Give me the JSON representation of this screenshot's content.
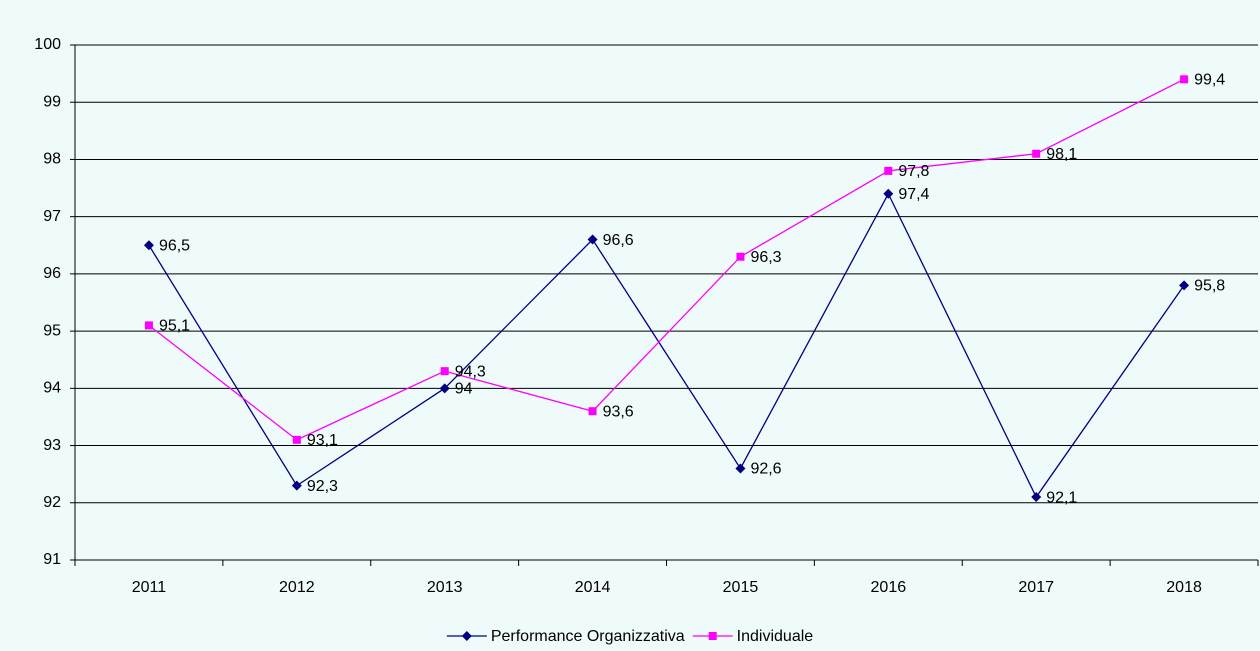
{
  "chart_data": {
    "type": "line",
    "categories": [
      "2011",
      "2012",
      "2013",
      "2014",
      "2015",
      "2016",
      "2017",
      "2018"
    ],
    "series": [
      {
        "name": "Performance Organizzativa",
        "color": "#000080",
        "marker": "diamond",
        "values": [
          96.5,
          92.3,
          94,
          96.6,
          92.6,
          97.4,
          92.1,
          95.8
        ],
        "value_labels": [
          "96,5",
          "92,3",
          "94",
          "96,6",
          "92,6",
          "97,4",
          "92,1",
          "95,8"
        ]
      },
      {
        "name": "Individuale",
        "color": "#ff00ff",
        "marker": "square",
        "values": [
          95.1,
          93.1,
          94.3,
          93.6,
          96.3,
          97.8,
          98.1,
          99.4
        ],
        "value_labels": [
          "95,1",
          "93,1",
          "94,3",
          "93,6",
          "96,3",
          "97,8",
          "98,1",
          "99,4"
        ]
      }
    ],
    "ylim": [
      91,
      100
    ],
    "yticks": [
      91,
      92,
      93,
      94,
      95,
      96,
      97,
      98,
      99,
      100
    ],
    "grid": true,
    "legend": "bottom"
  }
}
